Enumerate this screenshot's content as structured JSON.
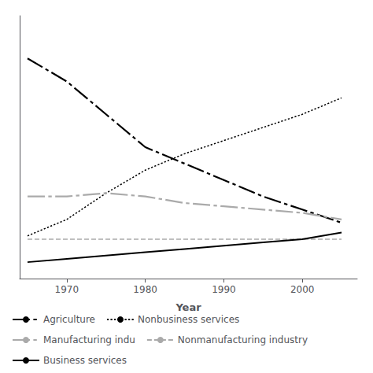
{
  "chart_data": {
    "type": "line",
    "x_label": "Year",
    "x": [
      1965,
      1970,
      1975,
      1980,
      1985,
      1990,
      1995,
      2000,
      2005
    ],
    "series": [
      {
        "name": "Agriculture",
        "color": "#000000",
        "line_style": "dashdot",
        "values": [
          0.72,
          0.65,
          0.55,
          0.45,
          0.4,
          0.35,
          0.3,
          0.26,
          0.22
        ]
      },
      {
        "name": "Nonbusiness services",
        "color": "#000000",
        "line_style": "dotted",
        "values": [
          0.18,
          0.23,
          0.31,
          0.38,
          0.43,
          0.47,
          0.51,
          0.55,
          0.6
        ]
      },
      {
        "name": "Manufacturing indu",
        "color": "#aaaaaa",
        "line_style": "dashdot",
        "values": [
          0.3,
          0.3,
          0.31,
          0.3,
          0.28,
          0.27,
          0.26,
          0.25,
          0.23
        ]
      },
      {
        "name": "Nonmanufacturing industry",
        "color": "#aaaaaa",
        "line_style": "dashed",
        "values": [
          0.17,
          0.17,
          0.17,
          0.17,
          0.17,
          0.17,
          0.17,
          0.17,
          0.17
        ]
      },
      {
        "name": "Business services",
        "color": "#000000",
        "line_style": "solid",
        "values": [
          0.1,
          0.11,
          0.12,
          0.13,
          0.14,
          0.15,
          0.16,
          0.17,
          0.19
        ]
      }
    ],
    "xlim": [
      1964,
      2007
    ],
    "xticks": [
      1970,
      1980,
      1990,
      2000
    ],
    "ylim": [
      0.05,
      0.85
    ],
    "tick_labels": "x",
    "grid": false,
    "legend": "lower left"
  }
}
